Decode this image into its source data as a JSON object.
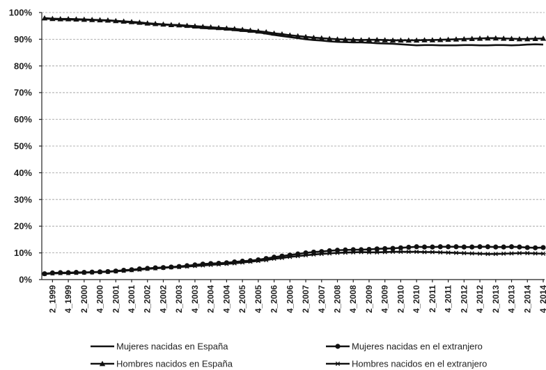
{
  "chart_data": {
    "type": "line",
    "title": "",
    "xlabel": "",
    "ylabel": "",
    "ylim": [
      0,
      100
    ],
    "y_ticks": [
      "0%",
      "10%",
      "20%",
      "30%",
      "40%",
      "50%",
      "60%",
      "70%",
      "80%",
      "90%",
      "100%"
    ],
    "grid": "horizontal dashed",
    "legend_position": "bottom",
    "x_tick_labels": [
      "2_1999",
      "4_1999",
      "2_2000",
      "4_2000",
      "2_2001",
      "4_2001",
      "2_2002",
      "4_2002",
      "2_2003",
      "4_2003",
      "2_2004",
      "4_2004",
      "2_2005",
      "4_2005",
      "2_2006",
      "4_2006",
      "2_2007",
      "4_2007",
      "2_2008",
      "4_2008",
      "2_2009",
      "4_2009",
      "2_2010",
      "4_2010",
      "2_2011",
      "4_2011",
      "2_2012",
      "4_2012",
      "2_2013",
      "4_2013",
      "2_2014",
      "4_2014"
    ],
    "x": [
      "1_1999",
      "2_1999",
      "3_1999",
      "4_1999",
      "1_2000",
      "2_2000",
      "3_2000",
      "4_2000",
      "1_2001",
      "2_2001",
      "3_2001",
      "4_2001",
      "1_2002",
      "2_2002",
      "3_2002",
      "4_2002",
      "1_2003",
      "2_2003",
      "3_2003",
      "4_2003",
      "1_2004",
      "2_2004",
      "3_2004",
      "4_2004",
      "1_2005",
      "2_2005",
      "3_2005",
      "4_2005",
      "1_2006",
      "2_2006",
      "3_2006",
      "4_2006",
      "1_2007",
      "2_2007",
      "3_2007",
      "4_2007",
      "1_2008",
      "2_2008",
      "3_2008",
      "4_2008",
      "1_2009",
      "2_2009",
      "3_2009",
      "4_2009",
      "1_2010",
      "2_2010",
      "3_2010",
      "4_2010",
      "1_2011",
      "2_2011",
      "3_2011",
      "4_2011",
      "1_2012",
      "2_2012",
      "3_2012",
      "4_2012",
      "1_2013",
      "2_2013",
      "3_2013",
      "4_2013",
      "1_2014",
      "2_2014",
      "3_2014",
      "4_2014"
    ],
    "series": [
      {
        "name": "Mujeres nacidas en España",
        "marker": "none",
        "values": [
          97.8,
          97.5,
          97.4,
          97.4,
          97.3,
          97.3,
          97.2,
          97.1,
          97.0,
          96.8,
          96.5,
          96.3,
          96.0,
          95.8,
          95.6,
          95.5,
          95.3,
          95.1,
          94.8,
          94.5,
          94.2,
          94.0,
          93.9,
          93.7,
          93.4,
          93.1,
          92.9,
          92.6,
          92.1,
          91.6,
          91.2,
          90.8,
          90.4,
          90.0,
          89.7,
          89.5,
          89.2,
          89.0,
          88.9,
          88.8,
          88.8,
          88.7,
          88.5,
          88.4,
          88.3,
          88.1,
          87.9,
          87.7,
          87.8,
          87.8,
          87.7,
          87.7,
          87.7,
          87.8,
          87.8,
          87.7,
          87.7,
          87.8,
          87.8,
          87.7,
          87.8,
          88.0,
          88.1,
          88.0
        ]
      },
      {
        "name": "Mujeres nacidas en el extranjero",
        "marker": "circle",
        "values": [
          2.2,
          2.5,
          2.6,
          2.6,
          2.7,
          2.7,
          2.8,
          2.9,
          3.0,
          3.2,
          3.5,
          3.7,
          4.0,
          4.2,
          4.4,
          4.5,
          4.7,
          4.9,
          5.2,
          5.5,
          5.8,
          6.0,
          6.1,
          6.3,
          6.6,
          6.9,
          7.1,
          7.4,
          7.9,
          8.4,
          8.8,
          9.2,
          9.6,
          10.0,
          10.3,
          10.5,
          10.8,
          11.0,
          11.1,
          11.2,
          11.2,
          11.3,
          11.5,
          11.6,
          11.7,
          11.9,
          12.1,
          12.3,
          12.2,
          12.2,
          12.3,
          12.3,
          12.3,
          12.2,
          12.2,
          12.3,
          12.3,
          12.2,
          12.2,
          12.3,
          12.2,
          12.0,
          11.9,
          12.0
        ]
      },
      {
        "name": "Hombres nacidos en España",
        "marker": "triangle",
        "values": [
          97.9,
          97.7,
          97.6,
          97.6,
          97.5,
          97.4,
          97.3,
          97.2,
          97.1,
          96.9,
          96.7,
          96.5,
          96.3,
          96.0,
          95.8,
          95.6,
          95.4,
          95.3,
          95.1,
          94.9,
          94.7,
          94.5,
          94.3,
          94.1,
          93.9,
          93.6,
          93.3,
          93.0,
          92.7,
          92.2,
          91.9,
          91.5,
          91.2,
          90.9,
          90.6,
          90.4,
          90.2,
          90.0,
          89.9,
          89.8,
          89.7,
          89.8,
          89.8,
          89.7,
          89.6,
          89.6,
          89.6,
          89.6,
          89.7,
          89.7,
          89.8,
          89.9,
          90.0,
          90.1,
          90.2,
          90.3,
          90.4,
          90.4,
          90.3,
          90.2,
          90.1,
          90.1,
          90.2,
          90.3
        ]
      },
      {
        "name": "Hombres nacidos en el extranjero",
        "marker": "asterisk",
        "values": [
          2.1,
          2.3,
          2.4,
          2.4,
          2.5,
          2.6,
          2.7,
          2.8,
          2.9,
          3.1,
          3.3,
          3.5,
          3.7,
          4.0,
          4.2,
          4.4,
          4.6,
          4.7,
          4.9,
          5.1,
          5.3,
          5.5,
          5.7,
          5.9,
          6.1,
          6.4,
          6.7,
          7.0,
          7.3,
          7.8,
          8.1,
          8.5,
          8.8,
          9.1,
          9.4,
          9.6,
          9.8,
          10.0,
          10.1,
          10.2,
          10.3,
          10.2,
          10.2,
          10.3,
          10.4,
          10.4,
          10.4,
          10.4,
          10.3,
          10.3,
          10.2,
          10.1,
          10.0,
          9.9,
          9.8,
          9.7,
          9.6,
          9.6,
          9.7,
          9.8,
          9.9,
          9.9,
          9.8,
          9.7
        ]
      }
    ]
  }
}
